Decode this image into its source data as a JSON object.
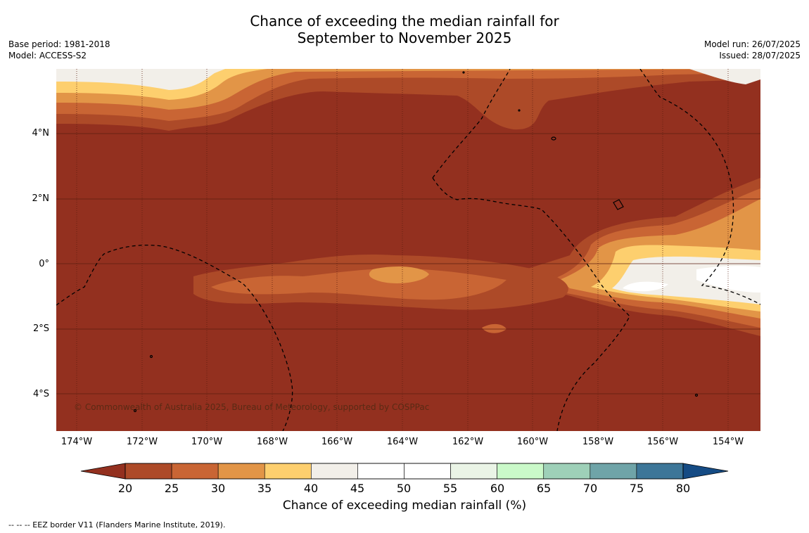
{
  "title": {
    "line1": "Chance of exceeding the median rainfall for",
    "line2": "September to November 2025"
  },
  "meta_left": {
    "base_period": "Base period: 1981-2018",
    "model": "Model: ACCESS-S2"
  },
  "meta_right": {
    "model_run": "Model run: 26/07/2025",
    "issued": "Issued: 28/07/2025"
  },
  "map": {
    "lat_labels": [
      "4°N",
      "2°N",
      "0°",
      "2°S",
      "4°S"
    ],
    "lon_labels": [
      "174°W",
      "172°W",
      "170°W",
      "168°W",
      "166°W",
      "164°W",
      "162°W",
      "160°W",
      "158°W",
      "156°W",
      "154°W"
    ],
    "copyright": "© Commonwealth of Australia 2025, Bureau of Meteorology, supported by COSPPac"
  },
  "colorbar": {
    "title": "Chance of exceeding median rainfall (%)",
    "ticks": [
      "20",
      "25",
      "30",
      "35",
      "40",
      "45",
      "50",
      "55",
      "60",
      "65",
      "70",
      "75",
      "80"
    ],
    "colors": [
      "#ad4a28",
      "#c96534",
      "#e29547",
      "#fdcf6e",
      "#f2efe9",
      "#ffffff",
      "#ffffff",
      "#eaf4e6",
      "#caf9c9",
      "#9ed0b8",
      "#6fa4a8",
      "#3d7698"
    ],
    "low_color": "#93301f",
    "high_color": "#154b84"
  },
  "footer": "--  --  -- EEZ border V11 (Flanders Marine Institute, 2019)."
}
